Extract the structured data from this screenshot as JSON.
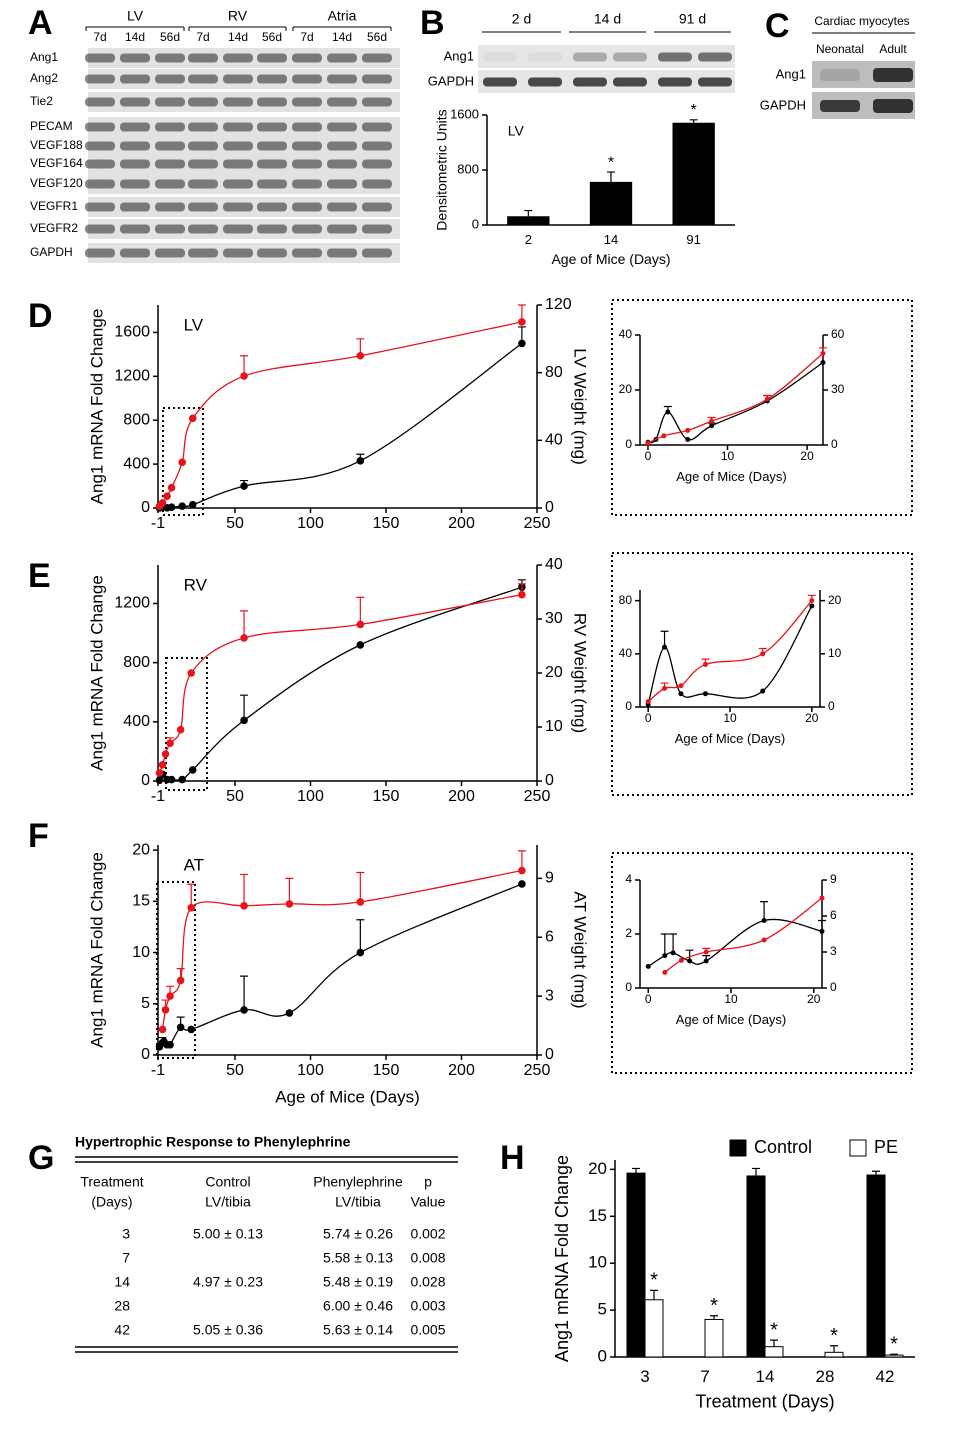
{
  "panels": [
    "A",
    "B",
    "C",
    "D",
    "E",
    "F",
    "G",
    "H"
  ],
  "gels": {
    "a": {
      "groups": [
        "LV",
        "RV",
        "Atria"
      ],
      "lanes": [
        "7d",
        "14d",
        "56d",
        "7d",
        "14d",
        "56d",
        "7d",
        "14d",
        "56d"
      ],
      "rows": [
        "Ang1",
        "Ang2",
        "Tie2",
        "PECAM",
        "VEGF188",
        "VEGF164",
        "VEGF120",
        "VEGFR1",
        "VEGFR2",
        "GAPDH"
      ]
    },
    "b": {
      "groups": [
        "2 d",
        "14 d",
        "91 d"
      ],
      "rows": [
        "Ang1",
        "GAPDH"
      ]
    },
    "c": {
      "title": "Cardiac myocytes",
      "lanes": [
        "Neonatal",
        "Adult"
      ],
      "rows": [
        "Ang1",
        "GAPDH"
      ]
    }
  },
  "chart_data": [
    {
      "type": "bar",
      "label": "LV",
      "ylabel": "Densitometric Units",
      "xlabel": "Age of Mice (Days)",
      "categories": [
        "2",
        "14",
        "91"
      ],
      "ylim": [
        0,
        1600
      ],
      "yticks": [
        0,
        800,
        1600
      ],
      "series": [
        {
          "color": "#000000",
          "values": [
            120,
            620,
            1480
          ],
          "errors": [
            90,
            150,
            50
          ],
          "significance": [
            null,
            "*",
            "*"
          ]
        }
      ]
    },
    {
      "type": "line",
      "label": "LV",
      "ylabel": "Ang1 mRNA Fold Change",
      "y2label": "LV Weight (mg)",
      "xlim": [
        -1,
        250
      ],
      "xticks": [
        -1,
        50,
        100,
        150,
        200,
        250
      ],
      "ylim": [
        0,
        1850
      ],
      "yticks": [
        0,
        400,
        800,
        1200,
        1600
      ],
      "y2lim": [
        0,
        120
      ],
      "y2ticks": [
        0,
        40,
        80,
        120
      ],
      "series": [
        {
          "color": "#000000",
          "axis": "y",
          "x": [
            0,
            2,
            5,
            8,
            15,
            22,
            56,
            133,
            240
          ],
          "values": [
            1,
            12,
            2,
            7,
            17,
            30,
            200,
            430,
            1500
          ],
          "errors": [
            null,
            null,
            null,
            null,
            null,
            null,
            50,
            60,
            150
          ]
        },
        {
          "color": "#e8141b",
          "axis": "y2",
          "x": [
            0,
            2,
            5,
            8,
            15,
            22,
            56,
            133,
            240
          ],
          "values": [
            1,
            3,
            7,
            12,
            27,
            53,
            78,
            90,
            110
          ],
          "errors": [
            null,
            null,
            null,
            null,
            null,
            null,
            12,
            10,
            10
          ]
        }
      ]
    },
    {
      "type": "line",
      "xlabel": "Age of Mice (Days)",
      "xlim": [
        -1,
        22
      ],
      "xticks": [
        0,
        10,
        20
      ],
      "ylim": [
        0,
        40
      ],
      "yticks": [
        0,
        20,
        40
      ],
      "y2lim": [
        0,
        60
      ],
      "y2ticks": [
        0,
        30,
        60
      ],
      "series": [
        {
          "color": "#000000",
          "axis": "y",
          "x": [
            0,
            1,
            2.5,
            5,
            8,
            15,
            22
          ],
          "values": [
            1,
            2,
            12,
            2,
            7,
            16,
            30
          ],
          "errors": [
            null,
            null,
            2,
            null,
            1,
            2,
            null
          ]
        },
        {
          "color": "#e8141b",
          "axis": "y2",
          "x": [
            0,
            2,
            5,
            8,
            15,
            22
          ],
          "values": [
            1,
            5,
            8,
            13,
            25,
            50
          ],
          "errors": [
            null,
            null,
            null,
            2,
            2,
            3
          ]
        }
      ]
    },
    {
      "type": "line",
      "label": "RV",
      "ylabel": "Ang1 mRNA Fold Change",
      "y2label": "RV Weight (mg)",
      "xlim": [
        -1,
        250
      ],
      "xticks": [
        -1,
        50,
        100,
        150,
        200,
        250
      ],
      "ylim": [
        0,
        1460
      ],
      "yticks": [
        0,
        400,
        800,
        1200
      ],
      "y2lim": [
        0,
        40
      ],
      "y2ticks": [
        0,
        10,
        20,
        30,
        40
      ],
      "series": [
        {
          "color": "#000000",
          "axis": "y",
          "x": [
            0,
            2,
            5,
            8,
            15,
            22,
            56,
            133,
            240
          ],
          "values": [
            5,
            45,
            10,
            10,
            10,
            75,
            410,
            920,
            1310
          ],
          "errors": [
            null,
            null,
            null,
            null,
            null,
            null,
            170,
            null,
            50
          ]
        },
        {
          "color": "#e8141b",
          "axis": "y2",
          "x": [
            0,
            2,
            4,
            7,
            14,
            21,
            56,
            133,
            240
          ],
          "values": [
            1.5,
            3,
            5,
            7,
            9.5,
            20,
            26.5,
            29,
            34.5
          ],
          "errors": [
            null,
            null,
            null,
            1,
            null,
            null,
            5,
            5,
            2
          ]
        }
      ]
    },
    {
      "type": "line",
      "xlabel": "Age of Mice (Days)",
      "xlim": [
        -1,
        21
      ],
      "xticks": [
        0,
        10,
        20
      ],
      "ylim": [
        0,
        88
      ],
      "yticks": [
        0,
        40,
        80
      ],
      "y2lim": [
        0,
        22
      ],
      "y2ticks": [
        0,
        10,
        20
      ],
      "series": [
        {
          "color": "#000000",
          "axis": "y",
          "x": [
            0,
            2,
            4,
            7,
            14,
            20
          ],
          "values": [
            2,
            45,
            10,
            10,
            12,
            76
          ],
          "errors": [
            null,
            12,
            null,
            null,
            null,
            null
          ]
        },
        {
          "color": "#e8141b",
          "axis": "y2",
          "x": [
            0,
            2,
            4,
            7,
            14,
            20
          ],
          "values": [
            1,
            3.5,
            4,
            8,
            10,
            20
          ],
          "errors": [
            null,
            1,
            null,
            1,
            1,
            1
          ]
        }
      ]
    },
    {
      "type": "line",
      "label": "AT",
      "ylabel": "Ang1 mRNA Fold Change",
      "y2label": "AT Weight (mg)",
      "xlabel": "Age of Mice (Days)",
      "xlim": [
        -1,
        250
      ],
      "xticks": [
        -1,
        50,
        100,
        150,
        200,
        250
      ],
      "ylim": [
        0,
        20.5
      ],
      "yticks": [
        0,
        5,
        10,
        15,
        20
      ],
      "y2lim": [
        0,
        10.7
      ],
      "y2ticks": [
        0,
        3,
        6,
        9
      ],
      "series": [
        {
          "color": "#000000",
          "axis": "y",
          "x": [
            0,
            2,
            3,
            5,
            7,
            14,
            21,
            56,
            86,
            133,
            240
          ],
          "values": [
            0.8,
            1.2,
            1.3,
            1.0,
            1.0,
            2.7,
            2.5,
            4.4,
            4.1,
            10,
            16.7
          ],
          "errors": [
            null,
            0.5,
            null,
            null,
            null,
            1,
            null,
            3.3,
            null,
            3.2,
            null
          ]
        },
        {
          "color": "#e8141b",
          "axis": "y2",
          "x": [
            2,
            4,
            7,
            14,
            21,
            56,
            86,
            133,
            240
          ],
          "values": [
            1.3,
            2.3,
            3,
            3.8,
            7.5,
            7.6,
            7.7,
            7.8,
            9.4
          ],
          "errors": [
            null,
            0.5,
            0.5,
            0.6,
            1.2,
            1.6,
            1.3,
            1.5,
            1
          ]
        }
      ]
    },
    {
      "type": "line",
      "xlabel": "Age of Mice (Days)",
      "xlim": [
        -1,
        21
      ],
      "xticks": [
        0,
        10,
        20
      ],
      "ylim": [
        0,
        4
      ],
      "yticks": [
        0,
        2,
        4
      ],
      "y2lim": [
        0,
        9
      ],
      "y2ticks": [
        0,
        3,
        6,
        9
      ],
      "series": [
        {
          "color": "#000000",
          "axis": "y",
          "x": [
            0,
            2,
            3,
            5,
            7,
            14,
            21
          ],
          "values": [
            0.8,
            1.2,
            1.3,
            1.0,
            1.0,
            2.5,
            2.1
          ],
          "errors": [
            null,
            0.8,
            0.7,
            0.4,
            0.2,
            0.7,
            0.4
          ]
        },
        {
          "color": "#e8141b",
          "axis": "y2",
          "x": [
            2,
            4,
            7,
            14,
            21
          ],
          "values": [
            1.3,
            2.3,
            3,
            4,
            7.5
          ],
          "errors": [
            null,
            null,
            0.3,
            null,
            null
          ]
        }
      ]
    },
    {
      "type": "bar",
      "ylabel": "Ang1 mRNA Fold Change",
      "xlabel": "Treatment (Days)",
      "legend": "top",
      "categories": [
        "3",
        "7",
        "14",
        "28",
        "42"
      ],
      "ylim": [
        0,
        21
      ],
      "yticks": [
        0,
        5,
        10,
        15,
        20
      ],
      "series": [
        {
          "name": "Control",
          "color": "#000000",
          "values": [
            19.6,
            null,
            19.3,
            null,
            19.4
          ],
          "errors": [
            0.5,
            null,
            0.8,
            null,
            0.4
          ]
        },
        {
          "name": "PE",
          "color": "#ffffff",
          "values": [
            6.1,
            4.0,
            1.1,
            0.5,
            0.2
          ],
          "errors": [
            1.0,
            0.4,
            0.7,
            0.7,
            0.1
          ],
          "significance": [
            "*",
            "*",
            "*",
            "*",
            "*"
          ]
        }
      ]
    }
  ],
  "table": {
    "title": "Hypertrophic Response to Phenylephrine",
    "header": [
      [
        "Treatment",
        "(Days)"
      ],
      [
        "Control",
        "LV/tibia"
      ],
      [
        "Phenylephrine",
        "LV/tibia"
      ],
      [
        "p",
        "Value"
      ]
    ],
    "rows": [
      [
        "3",
        "5.00 ± 0.13",
        "5.74 ± 0.26",
        "0.002"
      ],
      [
        "7",
        null,
        "5.58 ± 0.13",
        "0.008"
      ],
      [
        "14",
        "4.97 ± 0.23",
        "5.48 ± 0.19",
        "0.028"
      ],
      [
        "28",
        null,
        "6.00 ± 0.46",
        "0.003"
      ],
      [
        "42",
        "5.05 ± 0.36",
        "5.63 ± 0.14",
        "0.005"
      ]
    ]
  }
}
